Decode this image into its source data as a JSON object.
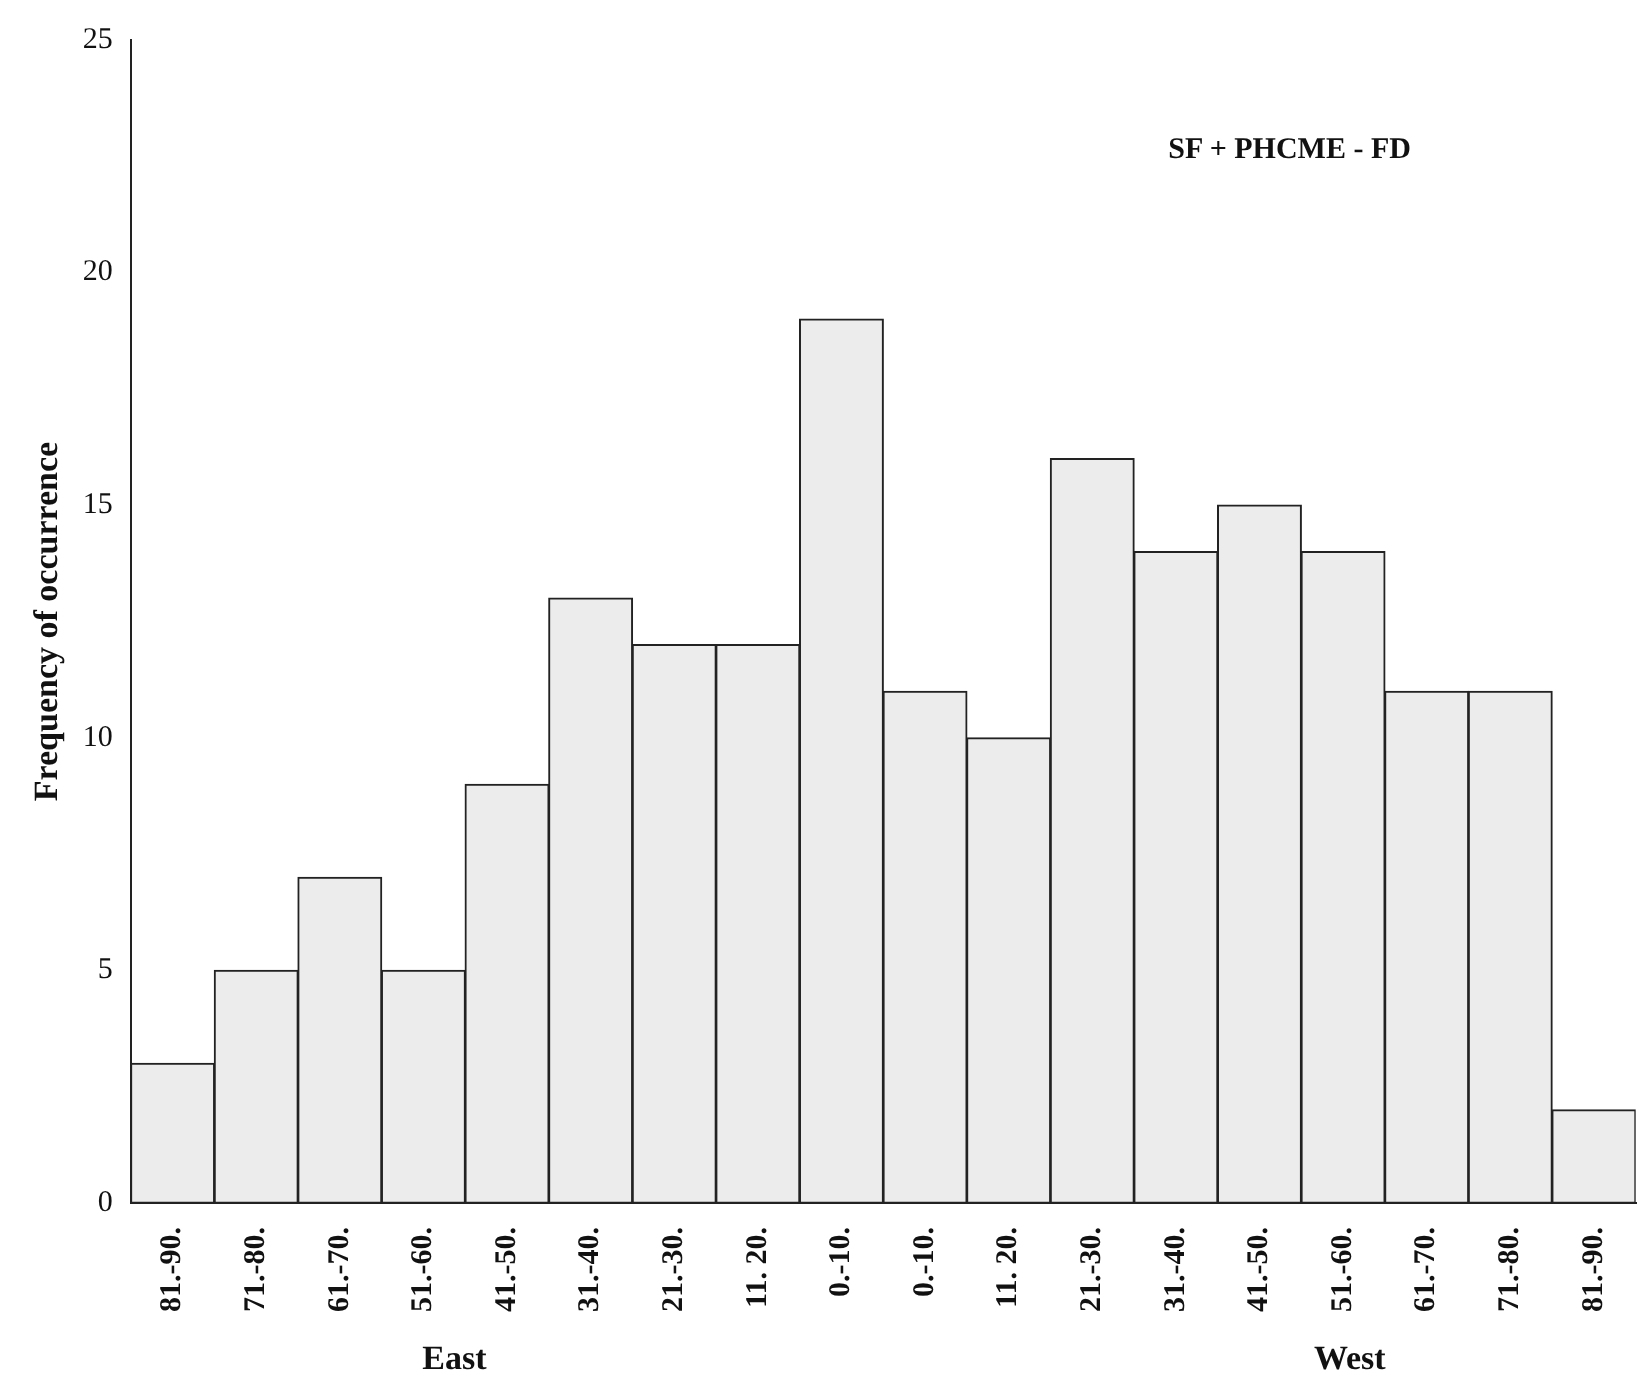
{
  "chart_data": {
    "type": "bar",
    "title": "SF + PHCME - FD",
    "ylabel": "Frequency of occurrence",
    "categories": [
      "81.-90.",
      "71.-80.",
      "61.-70.",
      "51.-60.",
      "41.-50.",
      "31.-40.",
      "21.-30.",
      "11. 20.",
      "0.-10.",
      "0.-10.",
      "11. 20.",
      "21.-30.",
      "31.-40.",
      "41.-50.",
      "51.-60.",
      "61.-70.",
      "71.-80.",
      "81.-90."
    ],
    "values": [
      3,
      5,
      7,
      5,
      9,
      13,
      12,
      12,
      19,
      11,
      10,
      16,
      14,
      15,
      14,
      11,
      11,
      2
    ],
    "color": "#ececec",
    "ylim": [
      0,
      25
    ],
    "yticks": [
      0,
      5,
      10,
      15,
      20,
      25
    ],
    "grid": false,
    "legend": false,
    "annotations": [
      "East",
      "West"
    ]
  }
}
